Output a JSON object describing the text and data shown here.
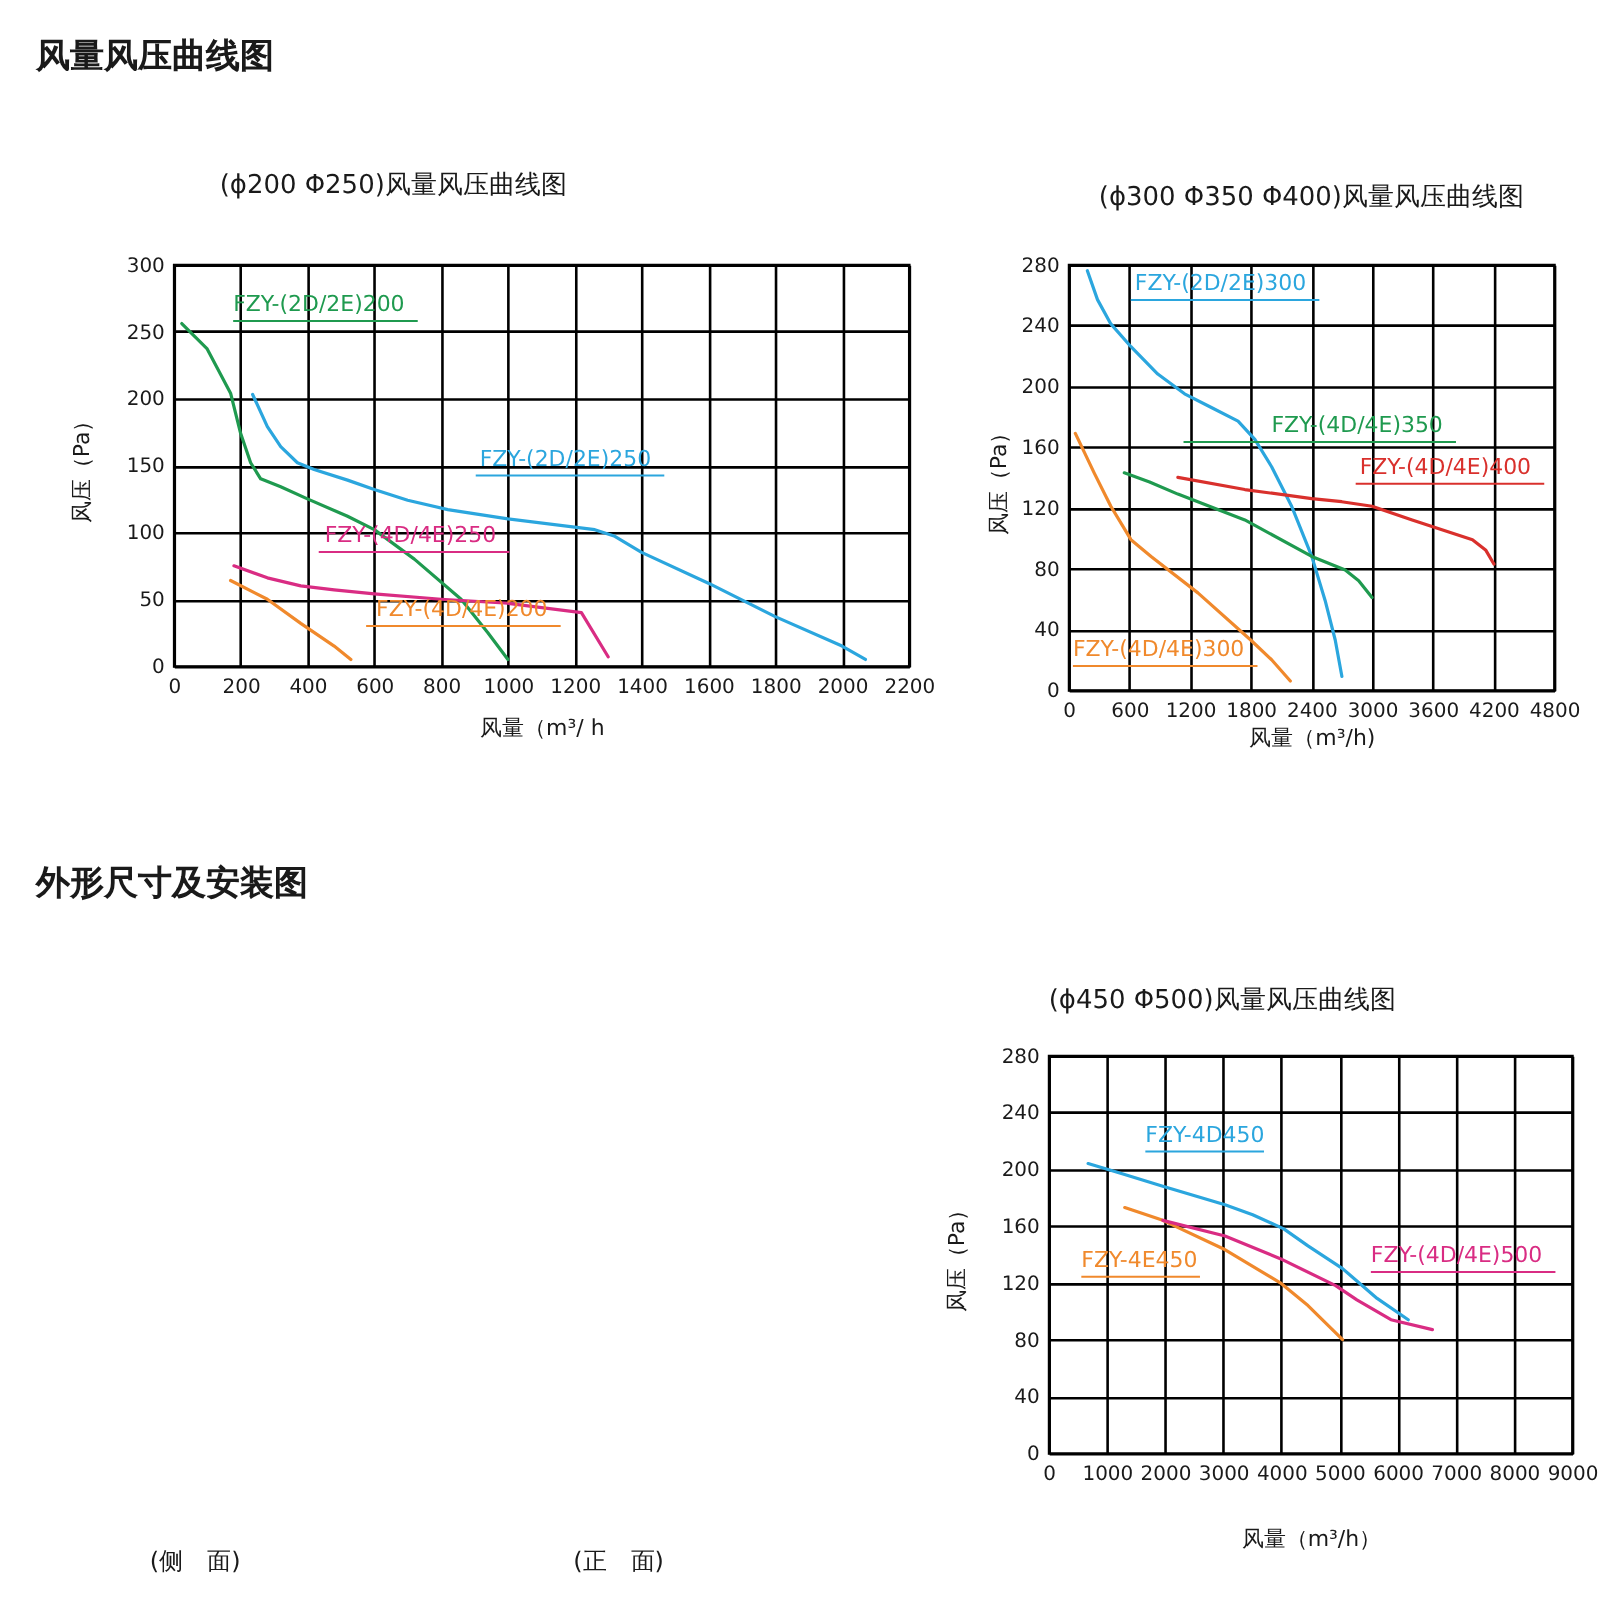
{
  "chart_data": [
    {
      "type": "other",
      "title": "风量风压曲线图"
    },
    {
      "type": "line",
      "title": "(ϕ200 Φ250)风量风压曲线图",
      "xlabel": "风量（m³/ h",
      "ylabel": "风压（Pa）",
      "xlim": [
        0,
        2200
      ],
      "ylim": [
        0,
        300
      ],
      "xticks": [
        0,
        200,
        400,
        600,
        800,
        1000,
        1200,
        1400,
        1600,
        1800,
        2000,
        2200
      ],
      "yticks": [
        0,
        50,
        100,
        150,
        200,
        250,
        300
      ],
      "grid": true,
      "series": [
        {
          "name": "FZY-(2D/2E)200",
          "color": "#1f9a4f",
          "x": [
            24,
            100,
            170,
            200,
            230,
            260,
            320,
            400,
            520,
            600,
            720,
            860,
            940,
            1000
          ],
          "values": [
            256,
            237,
            204,
            174,
            152,
            140,
            134,
            125,
            112,
            102,
            80,
            50,
            25,
            5
          ]
        },
        {
          "name": "FZY-(2D/2E)250",
          "color": "#2ba6de",
          "x": [
            236,
            280,
            320,
            370,
            420,
            520,
            600,
            700,
            820,
            1000,
            1260,
            1320,
            1400,
            1600,
            1800,
            2000,
            2070
          ],
          "values": [
            203,
            179,
            164,
            152,
            147,
            139,
            132,
            124,
            117,
            110,
            102,
            97,
            85,
            62,
            37,
            15,
            5
          ]
        },
        {
          "name": "FZY-(4D/4E)250",
          "color": "#d92c83",
          "x": [
            180,
            280,
            380,
            480,
            600,
            800,
            1000,
            1220,
            1300
          ],
          "values": [
            75,
            66,
            60,
            57,
            54,
            50,
            47,
            40,
            7
          ]
        },
        {
          "name": "FZY-(4D/4E)200",
          "color": "#f0892c",
          "x": [
            170,
            280,
            380,
            480,
            530
          ],
          "values": [
            64,
            50,
            32,
            15,
            5
          ]
        }
      ]
    },
    {
      "type": "line",
      "title": "(ϕ300 Φ350 Φ400)风量风压曲线图",
      "xlabel": "风量（m³/h)",
      "ylabel": "风压（Pa）",
      "xlim": [
        0,
        4800
      ],
      "ylim": [
        0,
        280
      ],
      "xticks": [
        0,
        600,
        1200,
        1800,
        2400,
        3000,
        3600,
        4200,
        4800
      ],
      "yticks": [
        0,
        40,
        80,
        120,
        160,
        200,
        240,
        280
      ],
      "grid": true,
      "series": [
        {
          "name": "FZY-(2D/2E)300",
          "color": "#2ba6de",
          "x": [
            185,
            285,
            417,
            616,
            881,
            1146,
            1411,
            1675,
            1841,
            2007,
            2205,
            2404,
            2536,
            2636,
            2702
          ],
          "values": [
            276,
            257,
            241,
            226,
            208,
            195,
            186,
            177,
            165,
            147,
            121,
            88,
            59,
            33,
            9
          ]
        },
        {
          "name": "FZY-(4D/4E)350",
          "color": "#1f9a4f",
          "x": [
            550,
            800,
            1080,
            1742,
            2404,
            2735,
            2868,
            3000
          ],
          "values": [
            143,
            137,
            129,
            112,
            88,
            79,
            72,
            61
          ]
        },
        {
          "name": "FZY-(4D/4E)400",
          "color": "#d9302c",
          "x": [
            1080,
            1742,
            2404,
            2700,
            3000,
            3397,
            3993,
            4126,
            4205
          ],
          "values": [
            140,
            132,
            126,
            124,
            121,
            112,
            99,
            92,
            83
          ]
        },
        {
          "name": "FZY-(4D/4E)300",
          "color": "#f0892c",
          "x": [
            66,
            252,
            417,
            616,
            815,
            1278,
            1800,
            2007,
            2192
          ],
          "values": [
            169,
            143,
            121,
            99,
            88,
            64,
            33,
            20,
            6
          ]
        }
      ]
    },
    {
      "type": "other",
      "title": "外形尺寸及安装图",
      "annotations": [
        "(侧　面)",
        "(正　面)"
      ]
    },
    {
      "type": "line",
      "title": "(ϕ450 Φ500)风量风压曲线图",
      "xlabel": "风量（m³/h）",
      "ylabel": "风压（Pa）",
      "xlim": [
        0,
        9000
      ],
      "ylim": [
        0,
        280
      ],
      "xticks": [
        0,
        1000,
        2000,
        3000,
        4000,
        5000,
        6000,
        7000,
        8000,
        9000
      ],
      "yticks": [
        0,
        40,
        80,
        120,
        160,
        200,
        240,
        280
      ],
      "grid": true,
      "series": [
        {
          "name": "FZY-4D450",
          "color": "#2ba6de",
          "x": [
            678,
            1250,
            1962,
            3032,
            3508,
            4043,
            4459,
            5054,
            5648,
            6183
          ],
          "values": [
            204,
            197,
            188,
            175,
            168,
            158,
            146,
            130,
            109,
            94
          ]
        },
        {
          "name": "FZY-4E450",
          "color": "#f0892c",
          "x": [
            1308,
            1962,
            3000,
            3983,
            4459,
            5054
          ],
          "values": [
            173,
            164,
            144,
            120,
            104,
            80
          ]
        },
        {
          "name": "FZY-(4D/4E)500",
          "color": "#d92c83",
          "x": [
            1962,
            3032,
            3983,
            4935,
            5300,
            5886,
            6599
          ],
          "values": [
            164,
            153,
            137,
            118,
            108,
            94,
            87
          ]
        }
      ]
    }
  ]
}
